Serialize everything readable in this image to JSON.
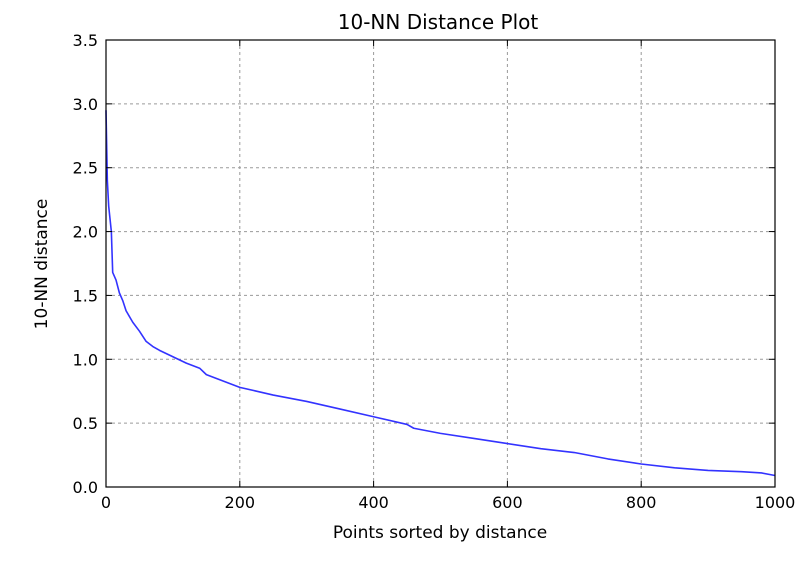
{
  "chart_data": {
    "type": "line",
    "title": "10-NN Distance Plot",
    "xlabel": "Points sorted by distance",
    "ylabel": "10-NN distance",
    "xlim": [
      0,
      1000
    ],
    "ylim": [
      0,
      3.5
    ],
    "x_ticks": [
      0,
      200,
      400,
      600,
      800,
      1000
    ],
    "x_tick_labels": [
      "0",
      "200",
      "400",
      "600",
      "800",
      "1000"
    ],
    "y_ticks": [
      0,
      0.5,
      1.0,
      1.5,
      2.0,
      2.5,
      3.0,
      3.5
    ],
    "y_tick_labels": [
      "0.0",
      "0.5",
      "1.0",
      "1.5",
      "2.0",
      "2.5",
      "3.0",
      "3.5"
    ],
    "grid": true,
    "series": [
      {
        "color": "#3333ff",
        "x": [
          0,
          2,
          4,
          6,
          8,
          10,
          15,
          20,
          25,
          30,
          40,
          50,
          60,
          70,
          80,
          100,
          120,
          140,
          150,
          175,
          200,
          225,
          250,
          300,
          350,
          400,
          450,
          460,
          500,
          550,
          600,
          650,
          700,
          750,
          800,
          850,
          900,
          950,
          980,
          1000
        ],
        "y": [
          2.95,
          2.4,
          2.2,
          2.1,
          2.0,
          1.68,
          1.62,
          1.52,
          1.46,
          1.38,
          1.29,
          1.22,
          1.14,
          1.1,
          1.07,
          1.02,
          0.97,
          0.93,
          0.88,
          0.83,
          0.78,
          0.75,
          0.72,
          0.67,
          0.61,
          0.55,
          0.49,
          0.46,
          0.42,
          0.38,
          0.34,
          0.3,
          0.27,
          0.22,
          0.18,
          0.15,
          0.13,
          0.12,
          0.11,
          0.09
        ]
      }
    ]
  }
}
